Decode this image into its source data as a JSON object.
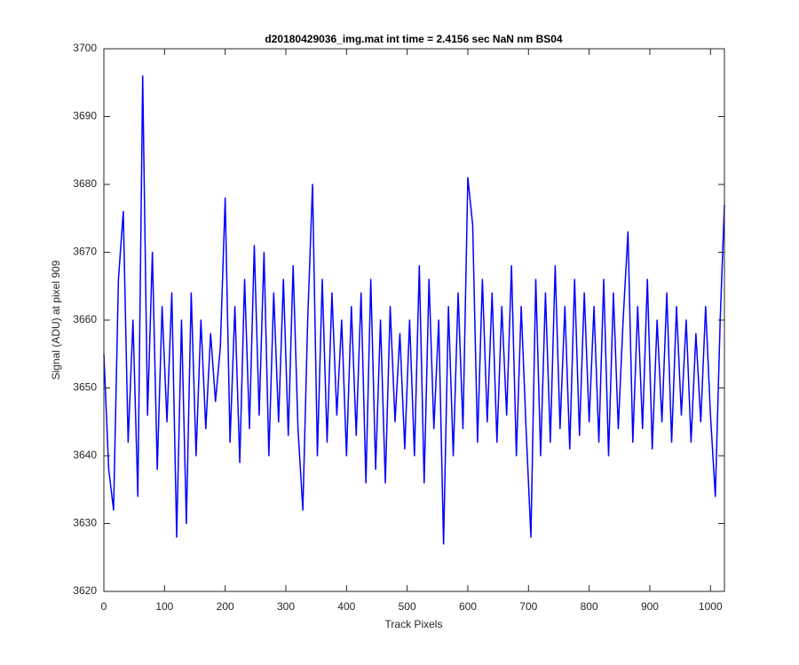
{
  "chart_data": {
    "type": "line",
    "title": "d20180429036_img.mat int time = 2.4156 sec  NaN nm BS04",
    "xlabel": "Track Pixels",
    "ylabel": "Signal (ADU) at pixel 909",
    "x": [
      0,
      8,
      16,
      24,
      32,
      40,
      48,
      56,
      64,
      72,
      80,
      88,
      96,
      104,
      112,
      120,
      128,
      136,
      144,
      152,
      160,
      168,
      176,
      184,
      192,
      200,
      208,
      216,
      224,
      232,
      240,
      248,
      256,
      264,
      272,
      280,
      288,
      296,
      304,
      312,
      320,
      328,
      336,
      344,
      352,
      360,
      368,
      376,
      384,
      392,
      400,
      408,
      416,
      424,
      432,
      440,
      448,
      456,
      464,
      472,
      480,
      488,
      496,
      504,
      512,
      520,
      528,
      536,
      544,
      552,
      560,
      568,
      576,
      584,
      592,
      600,
      608,
      616,
      624,
      632,
      640,
      648,
      656,
      664,
      672,
      680,
      688,
      696,
      704,
      712,
      720,
      728,
      736,
      744,
      752,
      760,
      768,
      776,
      784,
      792,
      800,
      808,
      816,
      824,
      832,
      840,
      848,
      856,
      864,
      872,
      880,
      888,
      896,
      904,
      912,
      920,
      928,
      936,
      944,
      952,
      960,
      968,
      976,
      984,
      992,
      1000,
      1008,
      1016,
      1023
    ],
    "series": [
      {
        "color": "#0000ff",
        "values": [
          3655,
          3638,
          3632,
          3666,
          3676,
          3642,
          3660,
          3634,
          3696,
          3646,
          3670,
          3638,
          3662,
          3645,
          3664,
          3628,
          3660,
          3630,
          3664,
          3640,
          3660,
          3644,
          3658,
          3648,
          3656,
          3678,
          3642,
          3662,
          3639,
          3666,
          3644,
          3671,
          3646,
          3670,
          3640,
          3664,
          3645,
          3666,
          3643,
          3668,
          3644,
          3632,
          3660,
          3680,
          3640,
          3666,
          3642,
          3664,
          3646,
          3660,
          3640,
          3662,
          3643,
          3664,
          3636,
          3666,
          3638,
          3660,
          3636,
          3662,
          3645,
          3658,
          3641,
          3660,
          3640,
          3668,
          3636,
          3666,
          3644,
          3660,
          3627,
          3662,
          3640,
          3664,
          3644,
          3681,
          3674,
          3642,
          3666,
          3645,
          3664,
          3642,
          3662,
          3646,
          3668,
          3640,
          3662,
          3644,
          3628,
          3666,
          3640,
          3664,
          3642,
          3668,
          3644,
          3662,
          3641,
          3666,
          3643,
          3664,
          3645,
          3662,
          3642,
          3666,
          3640,
          3664,
          3644,
          3660,
          3673,
          3642,
          3662,
          3644,
          3666,
          3641,
          3660,
          3645,
          3664,
          3642,
          3662,
          3646,
          3660,
          3642,
          3658,
          3645,
          3662,
          3646,
          3634,
          3660,
          3677
        ]
      }
    ],
    "xlim": [
      0,
      1023
    ],
    "xticks": [
      0,
      100,
      200,
      300,
      400,
      500,
      600,
      700,
      800,
      900,
      1000
    ],
    "ylim": [
      3620,
      3700
    ],
    "yticks": [
      3620,
      3630,
      3640,
      3650,
      3660,
      3670,
      3680,
      3690,
      3700
    ]
  }
}
